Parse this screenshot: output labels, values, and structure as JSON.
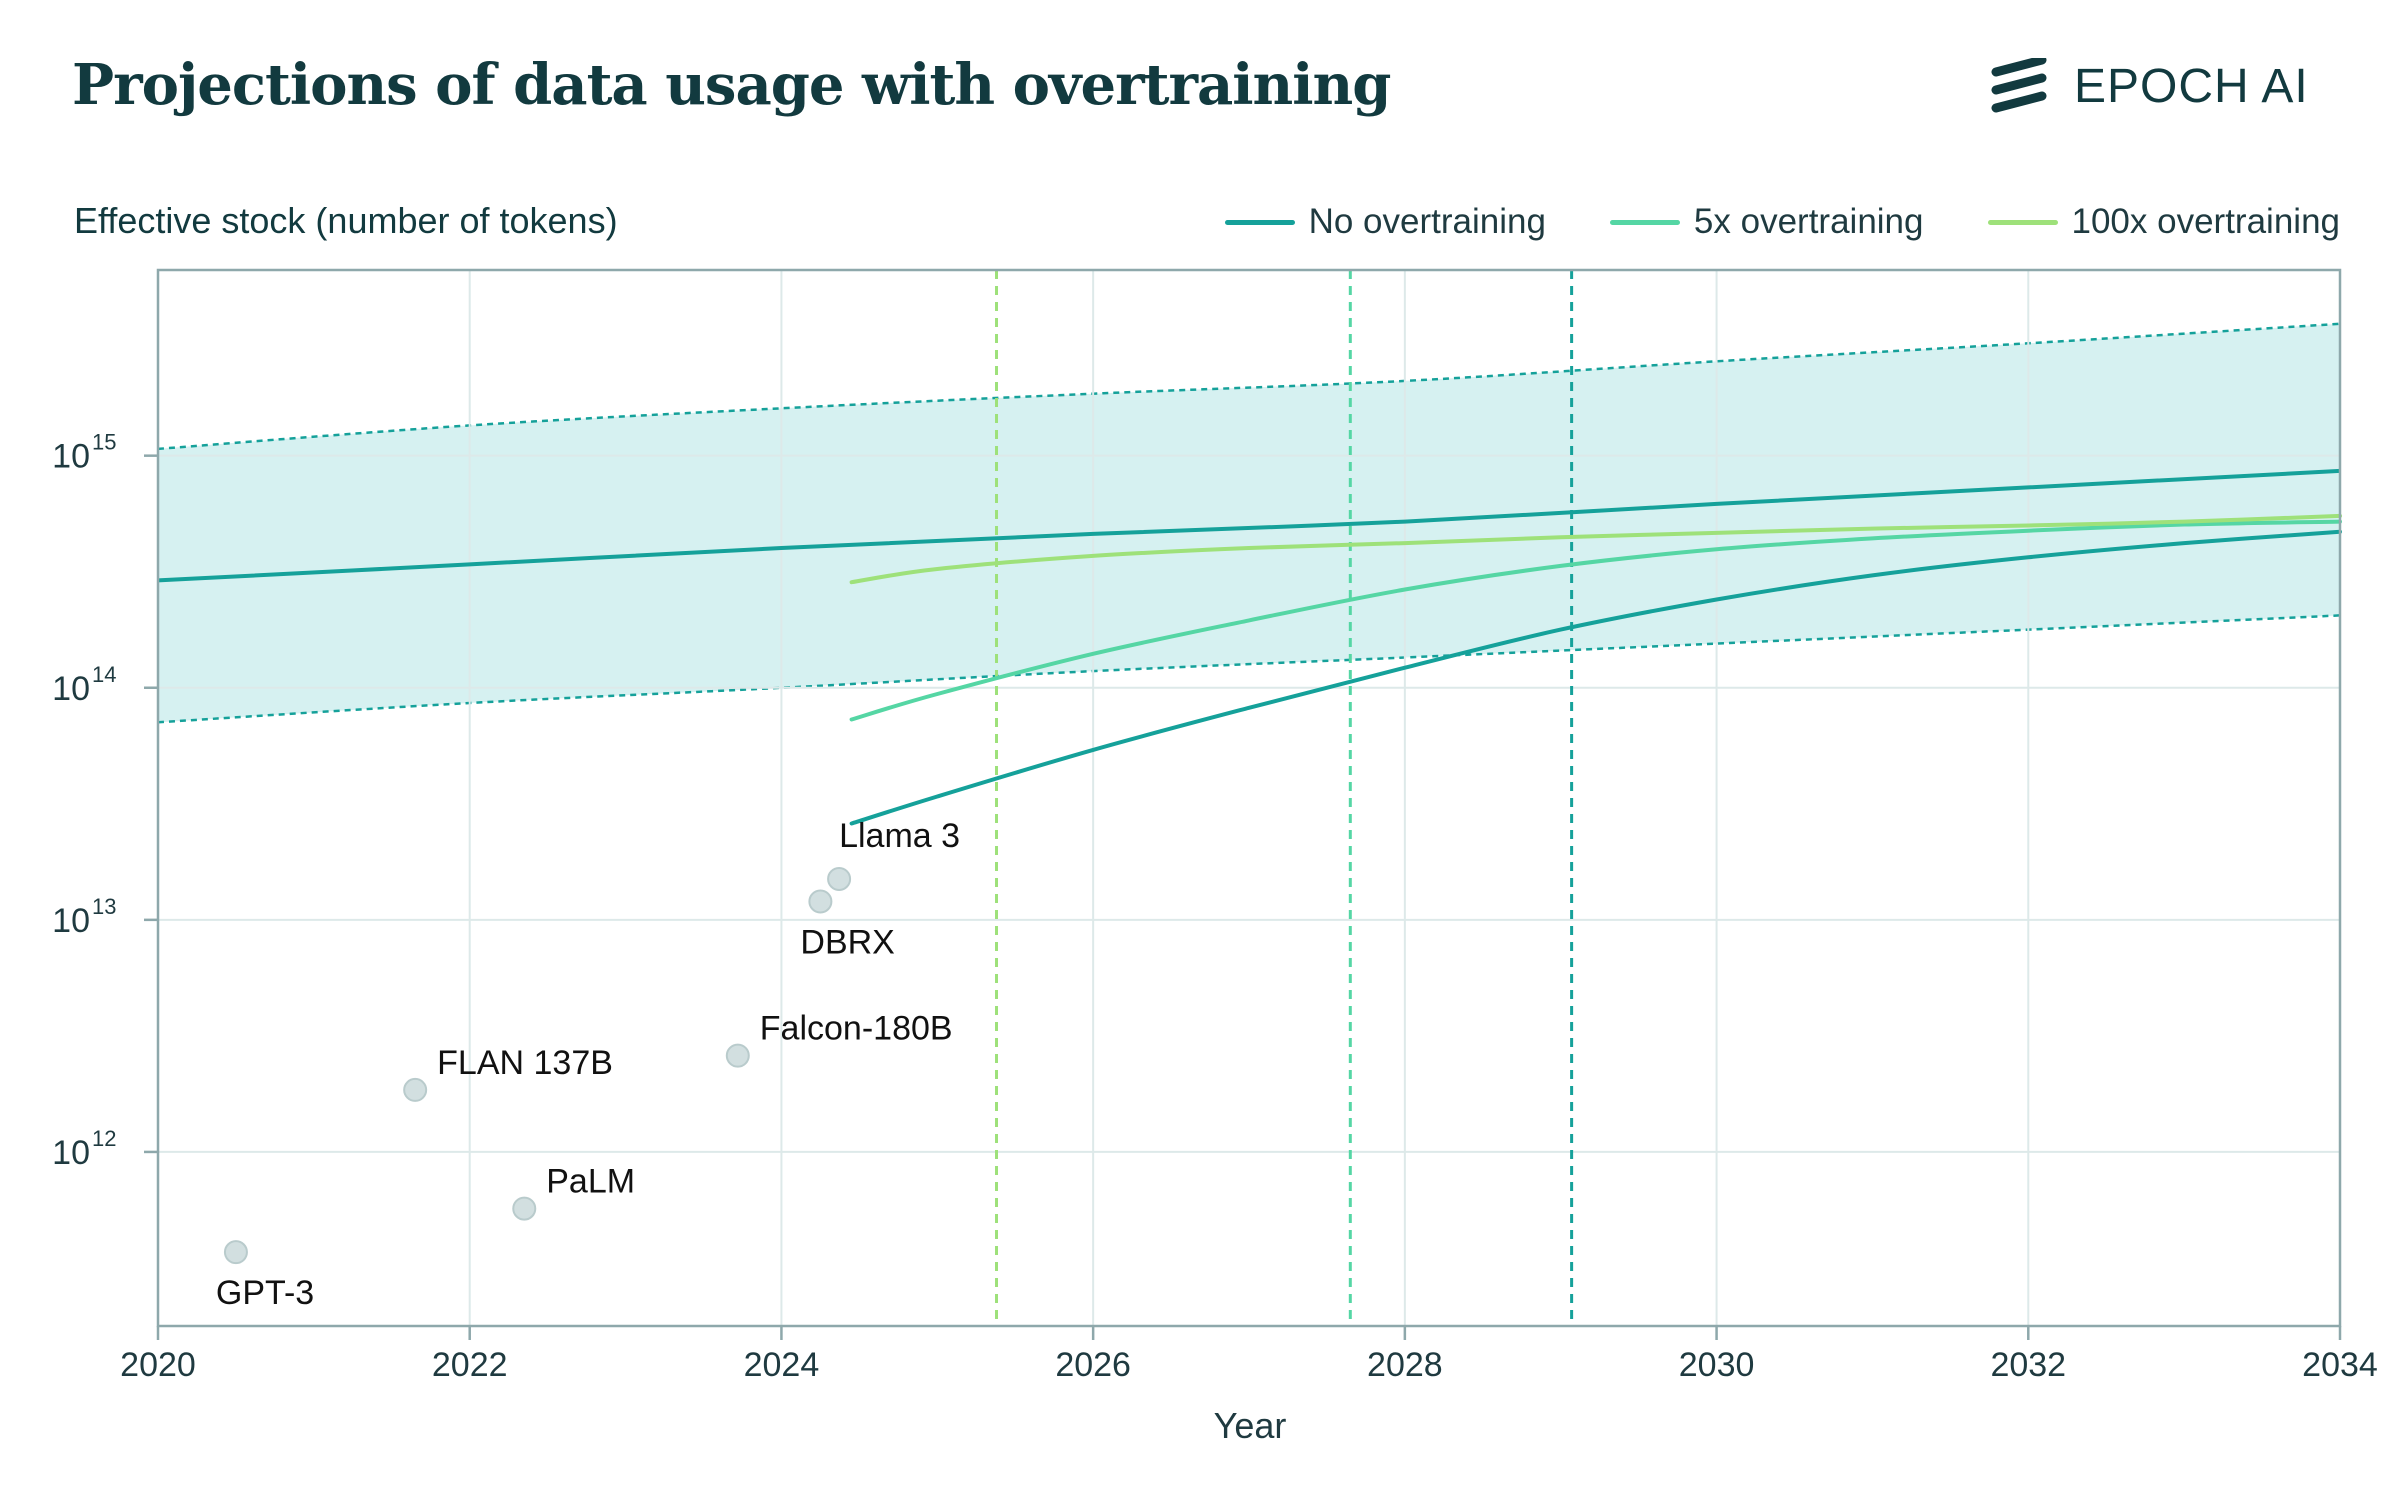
{
  "header": {
    "title": "Projections of data usage with overtraining",
    "logo_text": "EPOCH AI"
  },
  "chart_data": {
    "type": "line",
    "title": "Projections of data usage with overtraining",
    "ylabel": "Effective stock (number of tokens)",
    "xlabel": "Year",
    "xlim": [
      2020,
      2034
    ],
    "ylim_log10": [
      11.25,
      15.8
    ],
    "yscale": "log",
    "x_ticks": [
      "2020",
      "2022",
      "2024",
      "2026",
      "2028",
      "2030",
      "2032",
      "2034"
    ],
    "y_ticks": [
      {
        "base": "10",
        "exp": "12",
        "log10": 12
      },
      {
        "base": "10",
        "exp": "13",
        "log10": 13
      },
      {
        "base": "10",
        "exp": "14",
        "log10": 14
      },
      {
        "base": "10",
        "exp": "15",
        "log10": 15
      }
    ],
    "grid": true,
    "legend_position": "top-right",
    "colors": {
      "no_overtraining": "#15a19a",
      "overtraining_5x": "#55d6a4",
      "overtraining_100x": "#9ee17a",
      "band_fill": "#d6f1f1",
      "points": "#d2dfe0"
    },
    "stock_band": {
      "x": [
        2020,
        2022,
        2024,
        2026,
        2028,
        2030,
        2032,
        2034
      ],
      "median": [
        290000000000000.0,
        340000000000000.0,
        400000000000000.0,
        460000000000000.0,
        520000000000000.0,
        620000000000000.0,
        730000000000000.0,
        860000000000000.0
      ],
      "lower": [
        71000000000000.0,
        86000000000000.0,
        100000000000000.0,
        118000000000000.0,
        135000000000000.0,
        155000000000000.0,
        178000000000000.0,
        205000000000000.0
      ],
      "upper": [
        1070000000000000.0,
        1350000000000000.0,
        1600000000000000.0,
        1850000000000000.0,
        2100000000000000.0,
        2550000000000000.0,
        3050000000000000.0,
        3700000000000000.0
      ]
    },
    "series": [
      {
        "name": "No overtraining",
        "color": "#15a19a",
        "x": [
          2024.45,
          2025,
          2026,
          2027,
          2028,
          2029,
          2030,
          2031,
          2032,
          2033,
          2034
        ],
        "y": [
          26000000000000.0,
          34000000000000.0,
          54000000000000.0,
          82000000000000.0,
          122000000000000.0,
          178000000000000.0,
          240000000000000.0,
          305000000000000.0,
          365000000000000.0,
          420000000000000.0,
          470000000000000.0
        ]
      },
      {
        "name": "5x overtraining",
        "color": "#55d6a4",
        "x": [
          2024.45,
          2025,
          2026,
          2027,
          2028,
          2029,
          2030,
          2031,
          2032,
          2033,
          2034
        ],
        "y": [
          73000000000000.0,
          94000000000000.0,
          140000000000000.0,
          195000000000000.0,
          265000000000000.0,
          335000000000000.0,
          395000000000000.0,
          440000000000000.0,
          475000000000000.0,
          505000000000000.0,
          520000000000000.0
        ]
      },
      {
        "name": "100x overtraining",
        "color": "#9ee17a",
        "x": [
          2024.45,
          2025,
          2026,
          2027,
          2028,
          2029,
          2030,
          2031,
          2032,
          2033,
          2034
        ],
        "y": [
          285000000000000.0,
          325000000000000.0,
          370000000000000.0,
          400000000000000.0,
          420000000000000.0,
          445000000000000.0,
          465000000000000.0,
          485000000000000.0,
          500000000000000.0,
          520000000000000.0,
          550000000000000.0
        ]
      }
    ],
    "vertical_lines": [
      {
        "name": "100x overtraining",
        "x": 2025.38,
        "color": "#9ee17a"
      },
      {
        "name": "5x overtraining",
        "x": 2027.65,
        "color": "#55d6a4"
      },
      {
        "name": "No overtraining",
        "x": 2029.07,
        "color": "#15a19a"
      }
    ],
    "points": [
      {
        "label": "GPT-3",
        "x": 2020.5,
        "y": 370000000000.0,
        "label_pos": "below"
      },
      {
        "label": "FLAN 137B",
        "x": 2021.65,
        "y": 1850000000000.0,
        "label_pos": "above-right"
      },
      {
        "label": "PaLM",
        "x": 2022.35,
        "y": 570000000000.0,
        "label_pos": "above-right"
      },
      {
        "label": "Falcon-180B",
        "x": 2023.72,
        "y": 2600000000000.0,
        "label_pos": "above-right"
      },
      {
        "label": "DBRX",
        "x": 2024.25,
        "y": 12000000000000.0,
        "label_pos": "below"
      },
      {
        "label": "Llama 3",
        "x": 2024.37,
        "y": 15000000000000.0,
        "label_pos": "above"
      }
    ]
  }
}
